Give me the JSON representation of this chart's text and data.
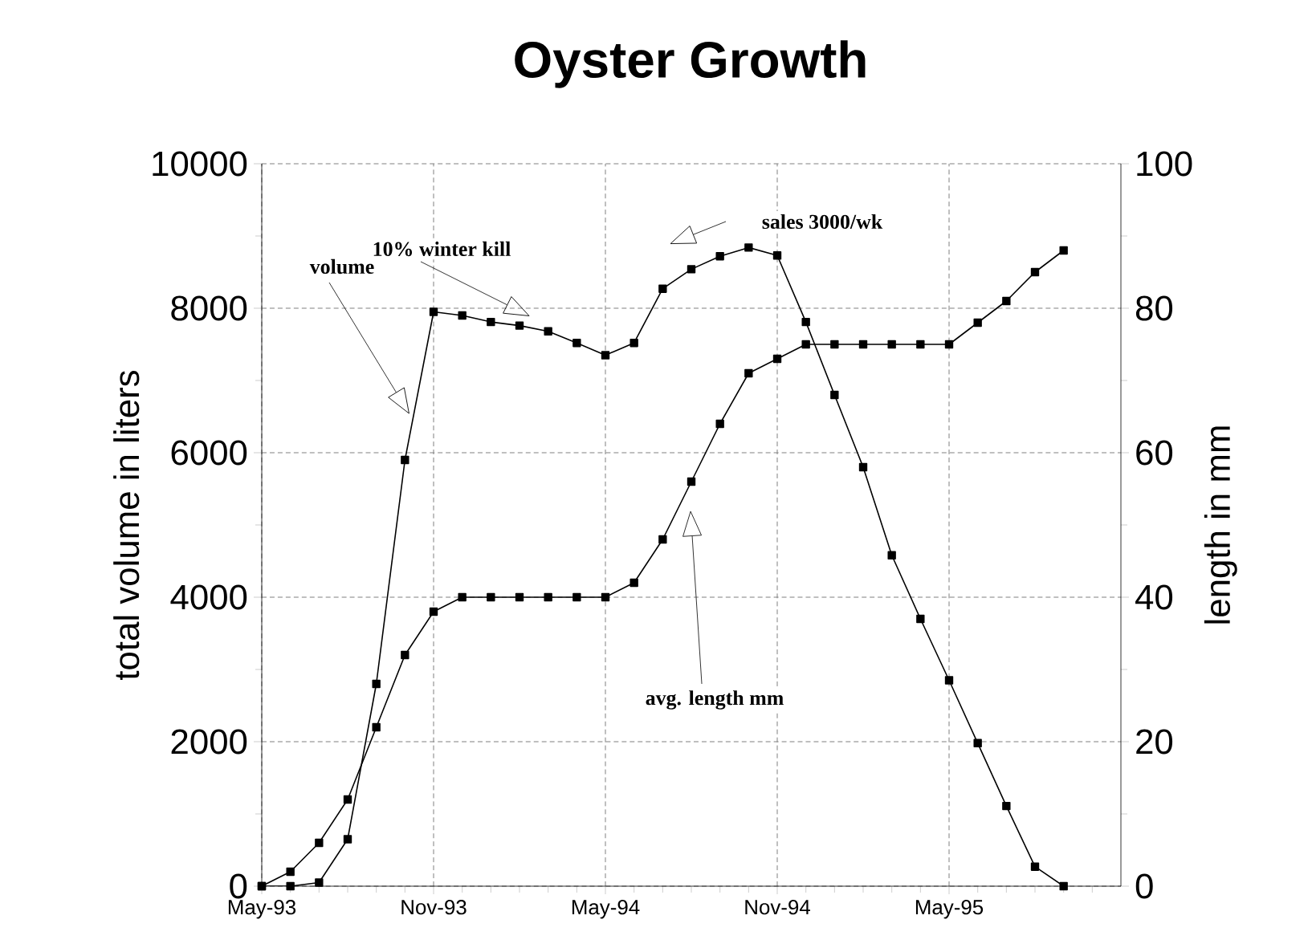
{
  "chart_data": {
    "type": "line",
    "title": "Oyster Growth",
    "ylabel": "total volume in liters",
    "y2label": "length in mm",
    "xlim": [
      "1993-05",
      "1995-11"
    ],
    "xticks": [
      {
        "value": "1993-05",
        "label": "May-93"
      },
      {
        "value": "1993-06",
        "label": null
      },
      {
        "value": "1993-07",
        "label": null
      },
      {
        "value": "1993-08",
        "label": null
      },
      {
        "value": "1993-09",
        "label": null
      },
      {
        "value": "1993-10",
        "label": null
      },
      {
        "value": "1993-11",
        "label": "Nov-93"
      },
      {
        "value": "1993-12",
        "label": null
      },
      {
        "value": "1994-01",
        "label": null
      },
      {
        "value": "1994-02",
        "label": null
      },
      {
        "value": "1994-03",
        "label": null
      },
      {
        "value": "1994-04",
        "label": null
      },
      {
        "value": "1994-05",
        "label": "May-94"
      },
      {
        "value": "1994-06",
        "label": null
      },
      {
        "value": "1994-07",
        "label": null
      },
      {
        "value": "1994-08",
        "label": null
      },
      {
        "value": "1994-09",
        "label": null
      },
      {
        "value": "1994-10",
        "label": null
      },
      {
        "value": "1994-11",
        "label": "Nov-94"
      },
      {
        "value": "1994-12",
        "label": null
      },
      {
        "value": "1995-01",
        "label": null
      },
      {
        "value": "1995-02",
        "label": null
      },
      {
        "value": "1995-03",
        "label": null
      },
      {
        "value": "1995-04",
        "label": null
      },
      {
        "value": "1995-05",
        "label": "May-95"
      },
      {
        "value": "1995-06",
        "label": null
      },
      {
        "value": "1995-07",
        "label": null
      },
      {
        "value": "1995-08",
        "label": null
      },
      {
        "value": "1995-09",
        "label": null
      },
      {
        "value": "1995-10",
        "label": null
      }
    ],
    "ylim": [
      0,
      10000
    ],
    "yticks": [
      0,
      {
        "value": 1000,
        "label": null
      },
      2000,
      {
        "value": 3000,
        "label": null
      },
      4000,
      {
        "value": 5000,
        "label": null
      },
      6000,
      {
        "value": 7000,
        "label": null
      },
      8000,
      {
        "value": 9000,
        "label": null
      },
      10000
    ],
    "y2lim": [
      0,
      100
    ],
    "y2ticks": [
      0,
      {
        "value": 10,
        "label": null
      },
      20,
      {
        "value": 30,
        "label": null
      },
      40,
      {
        "value": 50,
        "label": null
      },
      60,
      {
        "value": 70,
        "label": null
      },
      80,
      {
        "value": 90,
        "label": null
      },
      100
    ],
    "x": [
      "1993-05",
      "1993-06",
      "1993-07",
      "1993-08",
      "1993-09",
      "1993-10",
      "1993-11",
      "1993-12",
      "1994-01",
      "1994-02",
      "1994-03",
      "1994-04",
      "1994-05",
      "1994-06",
      "1994-07",
      "1994-08",
      "1994-09",
      "1994-10",
      "1994-11",
      "1994-12",
      "1995-01",
      "1995-02",
      "1995-03",
      "1995-04",
      "1995-05",
      "1995-06",
      "1995-07",
      "1995-08",
      "1995-09"
    ],
    "series": [
      {
        "color": "#000000",
        "values": [
          0,
          0,
          50,
          650,
          2800,
          5900,
          7950,
          7900,
          7810,
          7760,
          7680,
          7520,
          7350,
          7520,
          8270,
          8540,
          8720,
          8840,
          8730,
          7810,
          6800,
          5800,
          4580,
          3700,
          2850,
          1980,
          1110,
          270,
          0
        ]
      },
      {
        "color": "#000000",
        "axis": "y2",
        "values": [
          0,
          2,
          6,
          12,
          22,
          32,
          38,
          40,
          40,
          40,
          40,
          40,
          40,
          42,
          48,
          56,
          64,
          71,
          73,
          75,
          75,
          75,
          75,
          75,
          75,
          78,
          81,
          85,
          88
        ]
      }
    ],
    "annotations": [
      "volume",
      "10% winter kill",
      "sales 3000/wk",
      "avg. length mm"
    ],
    "grid": true,
    "marker": "square",
    "line_style": "solid"
  }
}
